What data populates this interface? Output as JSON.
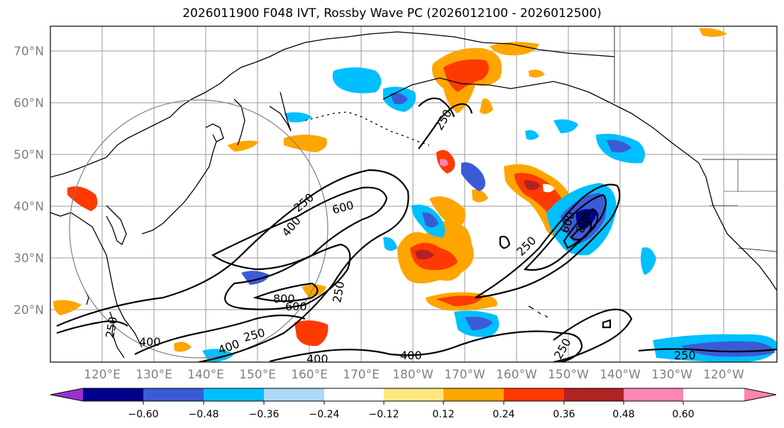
{
  "title": "2026011900 F048 IVT, Rossby Wave PC (2026012100 - 2026012500)",
  "latitude_labels": [
    "20°N",
    "30°N",
    "40°N",
    "50°N",
    "60°N",
    "70°N"
  ],
  "longitude_labels": [
    "120°E",
    "130°E",
    "140°E",
    "150°E",
    "160°E",
    "170°E",
    "180°W",
    "170°W",
    "160°W",
    "150°W",
    "140°W",
    "130°W",
    "120°W"
  ],
  "contour_labels": [
    "250",
    "400",
    "600",
    "800",
    "250",
    "400",
    "600",
    "250",
    "600",
    "800",
    "250",
    "400",
    "400",
    "400",
    "250",
    "250",
    "250",
    "250"
  ],
  "colorbar": {
    "ticks": [
      "−0.60",
      "−0.48",
      "−0.36",
      "−0.24",
      "−0.12",
      "0.12",
      "0.24",
      "0.36",
      "0.48",
      "0.60"
    ],
    "colors": [
      "#9932cc",
      "#00008b",
      "#3b5bd6",
      "#00bfff",
      "#add8f7",
      "#ffffff",
      "#ffe680",
      "#ffa500",
      "#ff3a00",
      "#b22222",
      "#ff85b3"
    ]
  }
}
